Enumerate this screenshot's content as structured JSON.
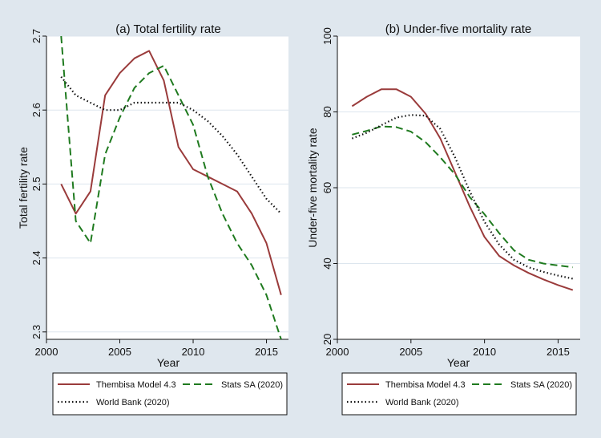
{
  "figure": {
    "background": "#dfe7ee",
    "plot_background": "#ffffff",
    "grid_color": "#dde6ee"
  },
  "legend_labels": {
    "thembisa": "Thembisa Model 4.3",
    "statssa": "Stats SA (2020)",
    "worldbank": "World Bank (2020)"
  },
  "chart_data": [
    {
      "type": "line",
      "title": "(a) Total fertility rate",
      "xlabel": "Year",
      "ylabel": "Total fertility rate",
      "xlim": [
        2000,
        2016.5
      ],
      "ylim": [
        2.29,
        2.7
      ],
      "xticks": [
        2000,
        2005,
        2010,
        2015
      ],
      "yticks": [
        2.3,
        2.4,
        2.5,
        2.6,
        2.7
      ],
      "ytick_labels": [
        "2.3",
        "2.4",
        "2.5",
        "2.6",
        "2.7"
      ],
      "grid": true,
      "series": [
        {
          "name": "Thembisa Model 4.3",
          "key": "thembisa",
          "color": "#9a3b3b",
          "style": "solid",
          "x": [
            2001,
            2002,
            2003,
            2004,
            2005,
            2006,
            2007,
            2008,
            2009,
            2010,
            2011,
            2012,
            2013,
            2014,
            2015,
            2016
          ],
          "values": [
            2.5,
            2.46,
            2.49,
            2.62,
            2.65,
            2.67,
            2.68,
            2.64,
            2.55,
            2.52,
            2.51,
            2.5,
            2.49,
            2.46,
            2.42,
            2.35
          ]
        },
        {
          "name": "Stats SA (2020)",
          "key": "statssa",
          "color": "#1f7a1f",
          "style": "dashed",
          "x": [
            2001,
            2002,
            2003,
            2004,
            2005,
            2006,
            2007,
            2008,
            2009,
            2010,
            2011,
            2012,
            2013,
            2014,
            2015,
            2016
          ],
          "values": [
            2.7,
            2.45,
            2.42,
            2.54,
            2.59,
            2.63,
            2.65,
            2.66,
            2.62,
            2.58,
            2.51,
            2.46,
            2.42,
            2.39,
            2.35,
            2.29
          ]
        },
        {
          "name": "World Bank (2020)",
          "key": "worldbank",
          "color": "#111111",
          "style": "dotted",
          "x": [
            2001,
            2002,
            2003,
            2004,
            2005,
            2006,
            2007,
            2008,
            2009,
            2010,
            2011,
            2012,
            2013,
            2014,
            2015,
            2016
          ],
          "values": [
            2.645,
            2.62,
            2.61,
            2.6,
            2.6,
            2.61,
            2.61,
            2.61,
            2.61,
            2.6,
            2.585,
            2.565,
            2.54,
            2.51,
            2.48,
            2.46
          ]
        }
      ]
    },
    {
      "type": "line",
      "title": "(b) Under-five mortality rate",
      "xlabel": "Year",
      "ylabel": "Under-five mortality rate",
      "xlim": [
        2000,
        2016.5
      ],
      "ylim": [
        20,
        100
      ],
      "xticks": [
        2000,
        2005,
        2010,
        2015
      ],
      "yticks": [
        20,
        40,
        60,
        80,
        100
      ],
      "ytick_labels": [
        "20",
        "40",
        "60",
        "80",
        "100"
      ],
      "grid": true,
      "series": [
        {
          "name": "Thembisa Model 4.3",
          "key": "thembisa",
          "color": "#9a3b3b",
          "style": "solid",
          "x": [
            2001,
            2002,
            2003,
            2004,
            2005,
            2006,
            2007,
            2008,
            2009,
            2010,
            2011,
            2012,
            2013,
            2014,
            2015,
            2016
          ],
          "values": [
            81.5,
            84,
            86,
            86,
            84,
            79.5,
            73,
            64,
            55,
            47,
            42,
            39.5,
            37.5,
            35.8,
            34.3,
            33
          ]
        },
        {
          "name": "Stats SA (2020)",
          "key": "statssa",
          "color": "#1f7a1f",
          "style": "dashed",
          "x": [
            2001,
            2002,
            2003,
            2004,
            2005,
            2006,
            2007,
            2008,
            2009,
            2010,
            2011,
            2012,
            2013,
            2014,
            2015,
            2016
          ],
          "values": [
            74,
            75,
            76.2,
            76,
            74.8,
            72,
            68,
            63.5,
            57.5,
            53,
            48,
            43.5,
            41,
            40,
            39.5,
            39
          ]
        },
        {
          "name": "World Bank (2020)",
          "key": "worldbank",
          "color": "#111111",
          "style": "dotted",
          "x": [
            2001,
            2002,
            2003,
            2004,
            2005,
            2006,
            2007,
            2008,
            2009,
            2010,
            2011,
            2012,
            2013,
            2014,
            2015,
            2016
          ],
          "values": [
            73,
            74.5,
            76.5,
            78.5,
            79.2,
            79,
            75.5,
            68,
            59,
            51,
            45,
            41,
            39,
            37.8,
            36.8,
            36
          ]
        }
      ]
    }
  ]
}
